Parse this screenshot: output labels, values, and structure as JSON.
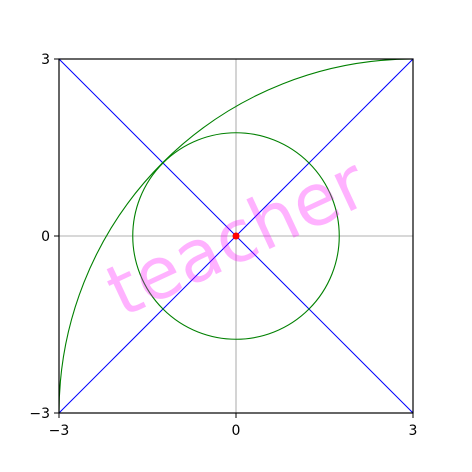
{
  "chart_data": {
    "type": "line",
    "title": "",
    "xlabel": "",
    "ylabel": "",
    "xlim": [
      -3,
      3
    ],
    "ylim": [
      -3,
      3
    ],
    "x_ticks": [
      -3,
      0,
      3
    ],
    "y_ticks": [
      -3,
      0,
      3
    ],
    "x_tick_labels": [
      "−3",
      "0",
      "3"
    ],
    "y_tick_labels": [
      "−3",
      "0",
      "3"
    ],
    "grid": "center lines only (x = 0, y = 0)",
    "aspect": "equal",
    "series": [
      {
        "kind": "line",
        "color": "#0000ff",
        "points": [
          [
            -3,
            -3
          ],
          [
            3,
            3
          ]
        ]
      },
      {
        "kind": "line",
        "color": "#0000ff",
        "points": [
          [
            -3,
            3
          ],
          [
            3,
            -3
          ]
        ]
      },
      {
        "kind": "circle",
        "color": "#008000",
        "center": [
          0,
          0
        ],
        "radius": 1.75
      },
      {
        "kind": "quarter-ellipse-arc",
        "color": "#008000",
        "center": [
          3,
          -3
        ],
        "radii": [
          6,
          6
        ],
        "from": [
          -3,
          -3
        ],
        "to": [
          3,
          3
        ]
      },
      {
        "kind": "point",
        "color": "#ff0000",
        "points": [
          [
            0,
            0
          ]
        ]
      }
    ],
    "annotations": [
      {
        "text": "teacher",
        "color": "#ff00ff",
        "alpha": 0.3,
        "angle_deg": 25,
        "at": [
          0,
          0
        ]
      }
    ]
  },
  "colors": {
    "axes_frame": "#000000",
    "grid": "#b0b0b0",
    "background": "#ffffff"
  }
}
